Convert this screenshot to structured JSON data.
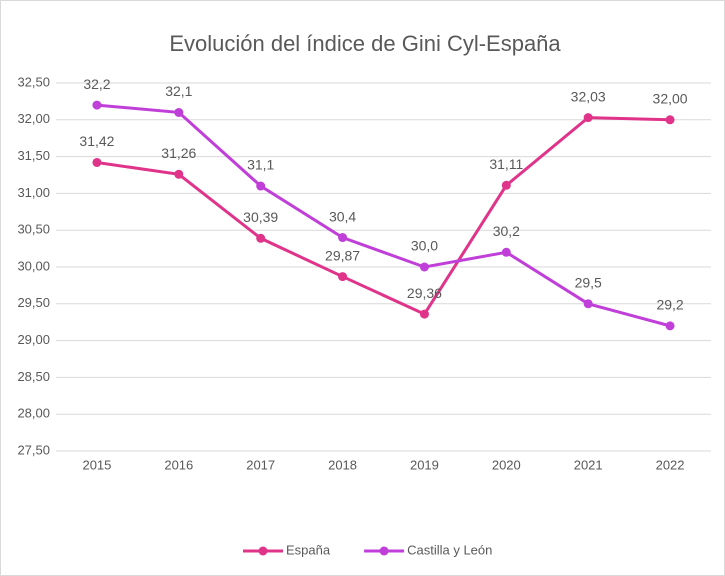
{
  "chart_data": {
    "type": "line",
    "title": "Evolución del índice de Gini Cyl-España",
    "categories": [
      "2015",
      "2016",
      "2017",
      "2018",
      "2019",
      "2020",
      "2021",
      "2022"
    ],
    "series": [
      {
        "name": "España",
        "color": "#e0338a",
        "values": [
          31.42,
          31.26,
          30.39,
          29.87,
          29.36,
          31.11,
          32.03,
          32.0
        ],
        "value_labels": [
          "31,42",
          "31,26",
          "30,39",
          "29,87",
          "29,36",
          "31,11",
          "32,03",
          "32,00"
        ]
      },
      {
        "name": "Castilla y León",
        "color": "#c03fd8",
        "values": [
          32.2,
          32.1,
          31.1,
          30.4,
          30.0,
          30.2,
          29.5,
          29.2
        ],
        "value_labels": [
          "32,2",
          "32,1",
          "31,1",
          "30,4",
          "30,0",
          "30,2",
          "29,5",
          "29,2"
        ]
      }
    ],
    "ylim": [
      27.5,
      32.5
    ],
    "yticks": [
      {
        "value": 27.5,
        "label": "27,50"
      },
      {
        "value": 28,
        "label": "28,00"
      },
      {
        "value": 28.5,
        "label": "28,50"
      },
      {
        "value": 29,
        "label": "29,00"
      },
      {
        "value": 29.5,
        "label": "29,50"
      },
      {
        "value": 30,
        "label": "30,00"
      },
      {
        "value": 30.5,
        "label": "30,50"
      },
      {
        "value": 31,
        "label": "31,00"
      },
      {
        "value": 31.5,
        "label": "31,50"
      },
      {
        "value": 32,
        "label": "32,00"
      },
      {
        "value": 32.5,
        "label": "32,50"
      }
    ],
    "grid": true,
    "legend": "bottom"
  }
}
